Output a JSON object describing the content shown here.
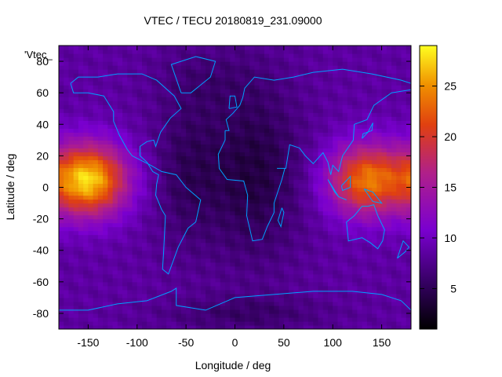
{
  "chart_data": {
    "type": "heatmap",
    "title": "VTEC / TECU 20180819_231.09000",
    "xlabel": "Longitude / deg",
    "ylabel": "Latitude / deg",
    "xlim": [
      -180,
      180
    ],
    "ylim": [
      -90,
      90
    ],
    "xticks": [
      -150,
      -100,
      -50,
      0,
      50,
      100,
      150
    ],
    "yticks": [
      -80,
      -60,
      -40,
      -20,
      0,
      20,
      40,
      60,
      80
    ],
    "colorbar": {
      "range": [
        1,
        29
      ],
      "ticks": [
        5,
        10,
        15,
        20,
        25
      ],
      "colormap": "gnuplot-pm3d"
    },
    "legend_label": "'Vtec_",
    "overlay": "coastlines",
    "coastline_color": "#00a0ff",
    "grid": false,
    "peaks": [
      {
        "lon": -150,
        "lat": 5,
        "vtec": 28
      },
      {
        "lon": 135,
        "lat": 5,
        "vtec": 24
      }
    ]
  }
}
